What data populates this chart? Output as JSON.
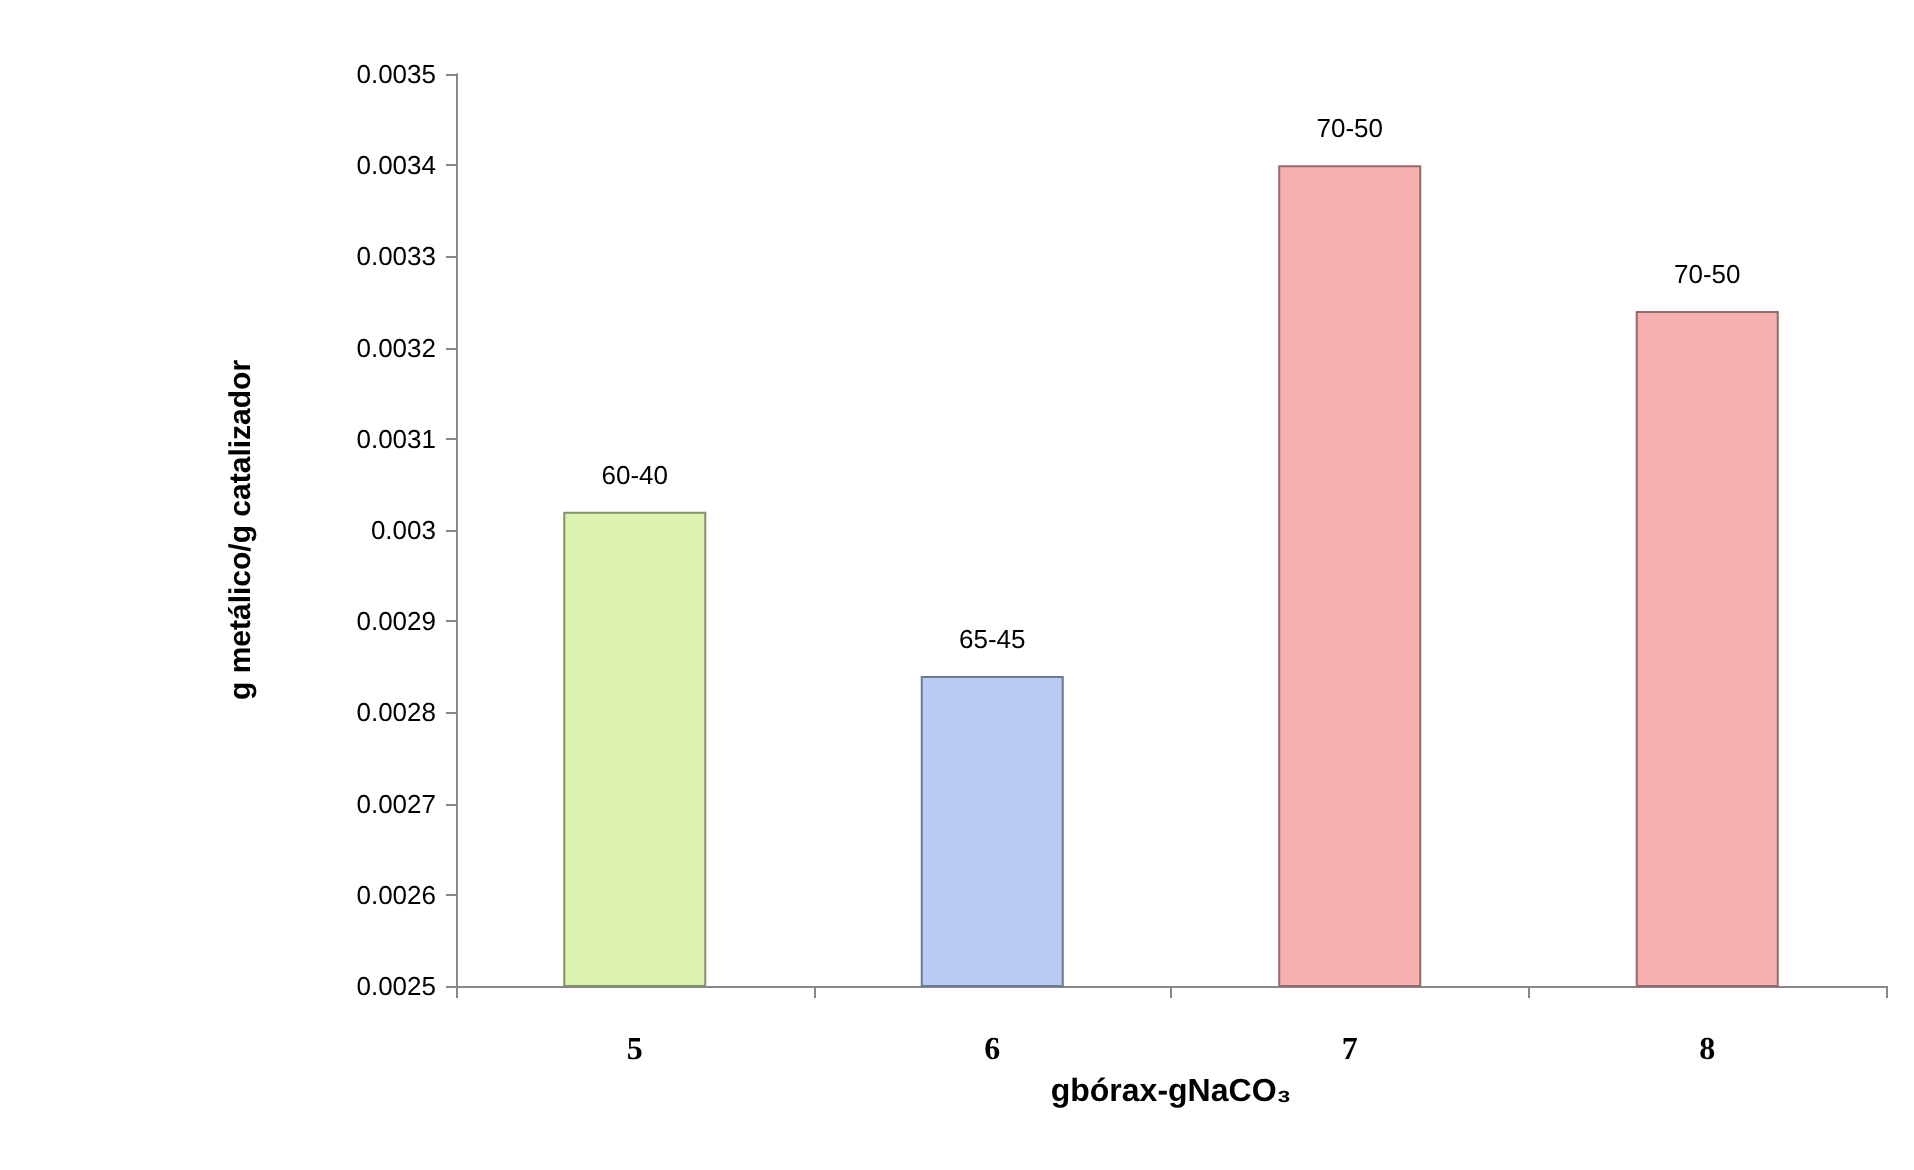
{
  "chart_data": {
    "type": "bar",
    "xlabel": "gbórax-gNaCO₃",
    "ylabel": "g metálico/g catalizador",
    "categories": [
      "5",
      "6",
      "7",
      "8"
    ],
    "values": [
      0.00302,
      0.00284,
      0.0034,
      0.00324
    ],
    "colors": [
      "#dcf2b0",
      "#b8ccf2",
      "#f6b0b0",
      "#f6b0b0"
    ],
    "value_labels": [
      "60-40",
      "65-45",
      "70-50",
      "70-50"
    ],
    "ylim": [
      0.0025,
      0.0035
    ],
    "yticks": [
      0.0025,
      0.0026,
      0.0027,
      0.0028,
      0.0029,
      0.003,
      0.0031,
      0.0032,
      0.0033,
      0.0034,
      0.0035
    ],
    "grid": false
  }
}
